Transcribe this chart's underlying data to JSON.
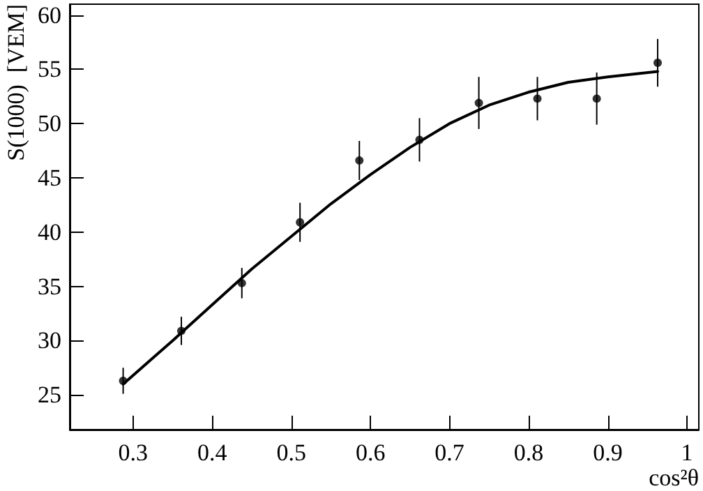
{
  "chart_data": {
    "type": "scatter",
    "xlabel": "cos²θ",
    "ylabel": "S(1000)  [VEM]",
    "xlim": [
      0.22,
      1.015
    ],
    "xticks": [
      0.3,
      0.4,
      0.5,
      0.6,
      0.7,
      0.8,
      0.9,
      1
    ],
    "ylim": [
      21.8,
      61
    ],
    "yticks": [
      25,
      30,
      35,
      40,
      45,
      50,
      55,
      60
    ],
    "grid": false,
    "marker": "circle",
    "series": [
      {
        "color": "#000000",
        "x": [
          0.2875,
          0.361,
          0.4375,
          0.511,
          0.586,
          0.662,
          0.737,
          0.811,
          0.886,
          0.963
        ],
        "values": [
          26.3,
          30.9,
          35.3,
          40.9,
          46.6,
          48.5,
          51.9,
          52.3,
          52.3,
          55.6
        ],
        "errors": [
          1.2,
          1.3,
          1.4,
          1.8,
          1.8,
          2.0,
          2.4,
          2.0,
          2.4,
          2.2
        ]
      },
      {
        "type": "line",
        "color": "#000000",
        "line_style": "solid",
        "marker": "none",
        "x": [
          0.2875,
          0.35,
          0.4,
          0.45,
          0.5,
          0.55,
          0.6,
          0.65,
          0.7,
          0.75,
          0.8,
          0.85,
          0.9,
          0.963
        ],
        "values": [
          26.0,
          30.0,
          33.3,
          36.6,
          39.6,
          42.6,
          45.3,
          47.8,
          50.0,
          51.7,
          52.9,
          53.8,
          54.3,
          54.8
        ]
      }
    ]
  }
}
